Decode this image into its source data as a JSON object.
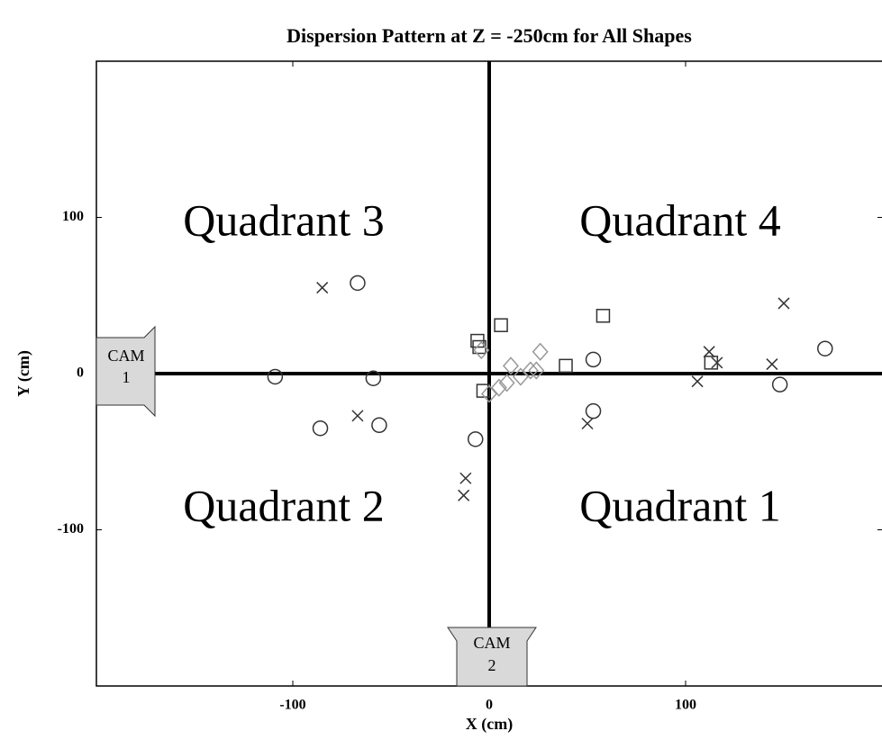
{
  "chart_data": {
    "type": "scatter",
    "title": "Dispersion Pattern at Z = -250cm for All Shapes",
    "xlabel": "X (cm)",
    "ylabel": "Y (cm)",
    "xlim": [
      -200,
      200
    ],
    "ylim": [
      -200,
      200
    ],
    "xticks": [
      -100,
      0,
      100
    ],
    "yticks": [
      -100,
      0,
      100
    ],
    "grid": false,
    "annotations": [
      "Quadrant 3",
      "Quadrant 4",
      "Quadrant 2",
      "Quadrant 1"
    ],
    "cameras": [
      [
        "CAM",
        "1"
      ],
      [
        "CAM",
        "2"
      ]
    ],
    "series": [
      {
        "marker": "circle",
        "color": "#333333",
        "x": [
          -67,
          -109,
          -59,
          -86,
          -56,
          -7,
          53,
          53,
          148,
          171
        ],
        "values": [
          58,
          -2,
          -3,
          -35,
          -33,
          -42,
          9,
          -24,
          -7,
          16
        ]
      },
      {
        "marker": "x",
        "color": "#333333",
        "x": [
          -85,
          -67,
          -12,
          -13,
          50,
          106,
          112,
          116,
          144,
          150
        ],
        "values": [
          55,
          -27,
          -67,
          -78,
          -32,
          -5,
          14,
          7,
          6,
          45
        ]
      },
      {
        "marker": "square",
        "color": "#333333",
        "x": [
          6,
          -6,
          -5,
          -3,
          58,
          39,
          113
        ],
        "values": [
          31,
          21,
          17,
          -11,
          37,
          5,
          7
        ]
      },
      {
        "marker": "diamond",
        "color": "#999999",
        "x": [
          -4,
          0,
          5,
          9,
          11,
          16,
          21,
          24,
          26
        ],
        "values": [
          15,
          -13,
          -9,
          -6,
          5,
          -2,
          2,
          2,
          14
        ]
      }
    ]
  }
}
